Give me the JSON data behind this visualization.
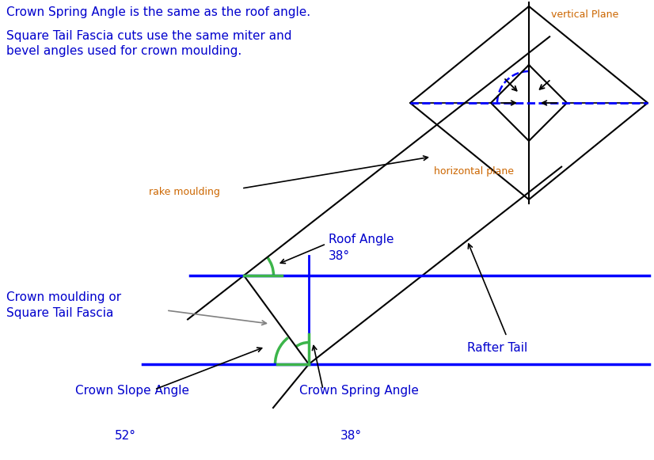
{
  "text_color_blue": "#0000CD",
  "text_color_black": "#000000",
  "text_color_orange": "#CC6600",
  "bg_color": "#ffffff",
  "title_line1": "Crown Spring Angle is the same as the roof angle.",
  "title_line2": "Square Tail Fascia cuts use the same miter and",
  "title_line3": "bevel angles used for crown moulding.",
  "label_vertical_plane": "vertical Plane",
  "label_horizontal_plane": "horizontal plane",
  "label_rake_moulding": "rake moulding",
  "label_roof_angle": "Roof Angle",
  "label_roof_deg": "38°",
  "label_crown_moulding": "Crown moulding or\nSquare Tail Fascia",
  "label_rafter_tail": "Rafter Tail",
  "label_crown_slope": "Crown Slope Angle",
  "label_crown_slope_deg": "52°",
  "label_crown_spring": "Crown Spring Angle",
  "label_crown_spring_deg": "38°"
}
